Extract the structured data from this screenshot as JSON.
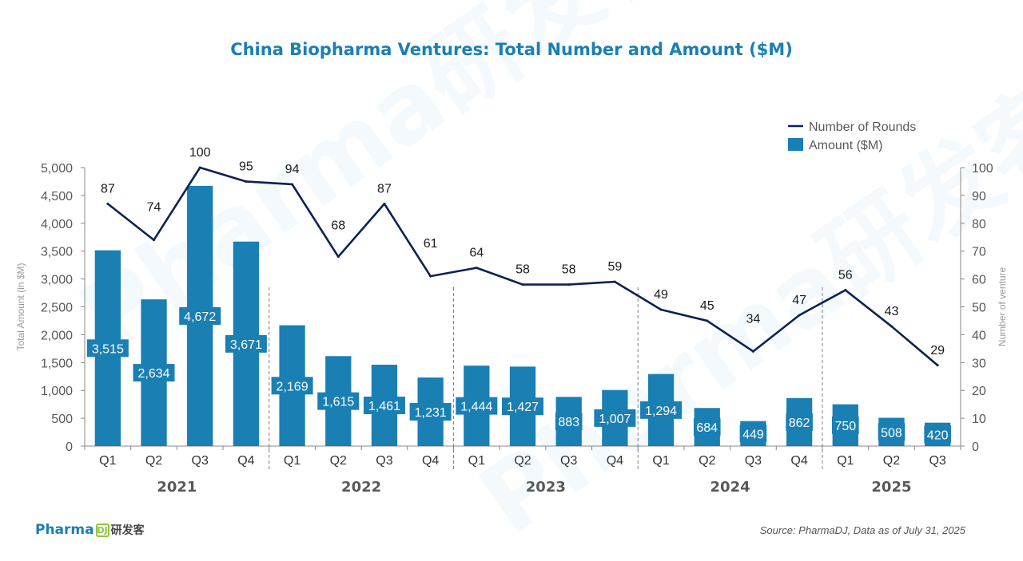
{
  "title": "China Biopharma Ventures: Total Number and Amount ($M)",
  "source": "Source: PharmaDJ, Data as of July 31, 2025",
  "logo": {
    "text": "Pharma",
    "badge": "DJ",
    "cn": "研发客"
  },
  "watermark": "Pharma研发客",
  "colors": {
    "bar": "#1a7fb3",
    "line": "#0c2254",
    "title": "#1a7fb3",
    "axis": "#888888",
    "text": "#333333"
  },
  "chart_data": {
    "type": "bar+line",
    "title": "China Biopharma Ventures: Total Number and Amount ($M)",
    "ylabel_left": "Total Amount (in $M)",
    "ylabel_right": "Number of venture",
    "ylim_left": [
      0,
      5000
    ],
    "ylim_right": [
      0,
      100
    ],
    "yticks_left": [
      "0",
      "500",
      "1,000",
      "1,500",
      "2,000",
      "2,500",
      "3,000",
      "3,500",
      "4,000",
      "4,500",
      "5,000"
    ],
    "yticks_right": [
      "0",
      "10",
      "20",
      "30",
      "40",
      "50",
      "60",
      "70",
      "80",
      "90",
      "100"
    ],
    "years": [
      {
        "label": "2021",
        "quarters": 4
      },
      {
        "label": "2022",
        "quarters": 4
      },
      {
        "label": "2023",
        "quarters": 4
      },
      {
        "label": "2024",
        "quarters": 4
      },
      {
        "label": "2025",
        "quarters": 3
      }
    ],
    "categories": [
      "Q1",
      "Q2",
      "Q3",
      "Q4",
      "Q1",
      "Q2",
      "Q3",
      "Q4",
      "Q1",
      "Q2",
      "Q3",
      "Q4",
      "Q1",
      "Q2",
      "Q3",
      "Q4",
      "Q1",
      "Q2",
      "Q3"
    ],
    "series": [
      {
        "name": "Amount ($M)",
        "type": "bar",
        "axis": "left",
        "values": [
          3515,
          2634,
          4672,
          3671,
          2169,
          1615,
          1461,
          1231,
          1444,
          1427,
          883,
          1007,
          1294,
          684,
          449,
          862,
          750,
          508,
          420
        ],
        "labels": [
          "3,515",
          "2,634",
          "4,672",
          "3,671",
          "2,169",
          "1,615",
          "1,461",
          "1,231",
          "1,444",
          "1,427",
          "883",
          "1,007",
          "1,294",
          "684",
          "449",
          "862",
          "750",
          "508",
          "420"
        ]
      },
      {
        "name": "Number of Rounds",
        "type": "line",
        "axis": "right",
        "values": [
          87,
          74,
          100,
          95,
          94,
          68,
          87,
          61,
          64,
          58,
          58,
          59,
          49,
          45,
          34,
          47,
          56,
          43,
          29
        ],
        "labels": [
          "87",
          "74",
          "100",
          "95",
          "94",
          "68",
          "87",
          "61",
          "64",
          "58",
          "58",
          "59",
          "49",
          "45",
          "34",
          "47",
          "56",
          "43",
          "29"
        ]
      }
    ],
    "legend": {
      "placement": "top-right",
      "order": [
        "Number of Rounds",
        "Amount ($M)"
      ]
    },
    "grid": false
  }
}
